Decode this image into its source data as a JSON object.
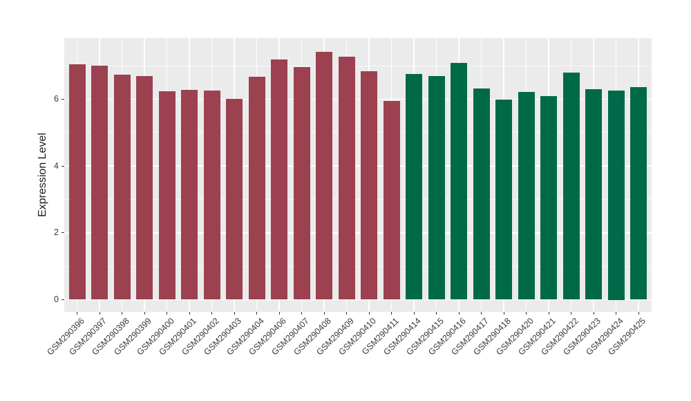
{
  "chart_data": {
    "type": "bar",
    "title": "",
    "xlabel": "",
    "ylabel": "Expression Level",
    "ylim": [
      0,
      7.83
    ],
    "yticks": [
      0,
      2,
      4,
      6
    ],
    "yticks_minor": [
      1,
      3,
      5,
      7
    ],
    "grid": true,
    "legend_position": "none",
    "panel_background": "#EBEBEB",
    "gridline_color": "#FFFFFF",
    "tick_label_color": "#3a3a3a",
    "group_colors": [
      "#9C4150",
      "#006A48"
    ],
    "categories": [
      "GSM290396",
      "GSM290397",
      "GSM290398",
      "GSM290399",
      "GSM290400",
      "GSM290401",
      "GSM290402",
      "GSM290403",
      "GSM290404",
      "GSM290406",
      "GSM290407",
      "GSM290408",
      "GSM290409",
      "GSM290410",
      "GSM290411",
      "GSM290414",
      "GSM290415",
      "GSM290416",
      "GSM290417",
      "GSM290418",
      "GSM290420",
      "GSM290421",
      "GSM290422",
      "GSM290423",
      "GSM290424",
      "GSM290425"
    ],
    "values": [
      7.05,
      7.01,
      6.73,
      6.69,
      6.24,
      6.28,
      6.26,
      6.0,
      6.67,
      7.19,
      6.96,
      7.42,
      7.27,
      6.83,
      5.95,
      6.75,
      6.69,
      7.09,
      6.31,
      5.98,
      6.22,
      6.1,
      6.8,
      6.3,
      6.25,
      6.37
    ],
    "groups": [
      0,
      0,
      0,
      0,
      0,
      0,
      0,
      0,
      0,
      0,
      0,
      0,
      0,
      0,
      0,
      1,
      1,
      1,
      1,
      1,
      1,
      1,
      1,
      1,
      1,
      1
    ]
  }
}
